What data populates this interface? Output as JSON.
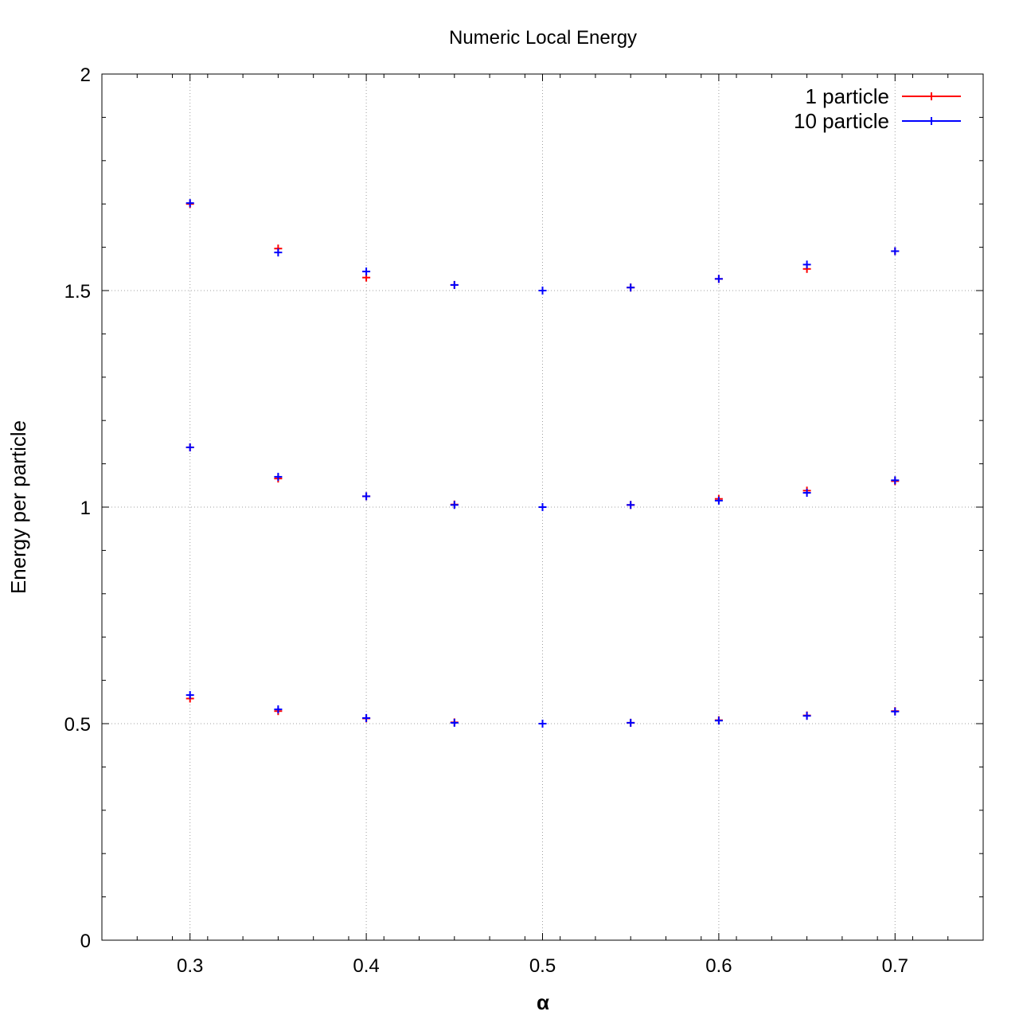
{
  "chart_data": {
    "type": "scatter",
    "title": "Numeric Local Energy",
    "xlabel": "α",
    "ylabel": "Energy per particle",
    "xlim": [
      0.25,
      0.75
    ],
    "ylim": [
      0,
      2
    ],
    "x_ticks": [
      0.3,
      0.4,
      0.5,
      0.6,
      0.7
    ],
    "x_tick_labels": [
      "0.3",
      "0.4",
      "0.5",
      "0.6",
      "0.7"
    ],
    "y_ticks": [
      0,
      0.5,
      1,
      1.5,
      2
    ],
    "y_tick_labels": [
      "0",
      "0.5",
      "1",
      "1.5",
      "2"
    ],
    "grid": true,
    "legend_position": "top-right",
    "series": [
      {
        "name": "1 particle",
        "color": "#ff0000",
        "x": [
          0.3,
          0.35,
          0.4,
          0.45,
          0.5,
          0.55,
          0.6,
          0.65,
          0.7,
          0.3,
          0.35,
          0.4,
          0.45,
          0.5,
          0.55,
          0.6,
          0.65,
          0.7,
          0.3,
          0.35,
          0.4,
          0.45,
          0.5,
          0.55,
          0.6,
          0.65,
          0.7
        ],
        "y": [
          0.558,
          0.529,
          0.512,
          0.503,
          0.5,
          0.502,
          0.508,
          0.519,
          0.529,
          1.138,
          1.066,
          1.025,
          1.006,
          1.0,
          1.005,
          1.019,
          1.038,
          1.06,
          1.7,
          1.597,
          1.53,
          1.513,
          1.5,
          1.507,
          1.527,
          1.55,
          1.591
        ]
      },
      {
        "name": "10 particle",
        "color": "#0000ff",
        "x": [
          0.3,
          0.35,
          0.4,
          0.45,
          0.5,
          0.55,
          0.6,
          0.65,
          0.7,
          0.3,
          0.35,
          0.4,
          0.45,
          0.5,
          0.55,
          0.6,
          0.65,
          0.7,
          0.3,
          0.35,
          0.4,
          0.45,
          0.5,
          0.55,
          0.6,
          0.65,
          0.7
        ],
        "y": [
          0.566,
          0.533,
          0.513,
          0.502,
          0.5,
          0.502,
          0.507,
          0.518,
          0.528,
          1.138,
          1.07,
          1.025,
          1.005,
          1.0,
          1.005,
          1.015,
          1.033,
          1.062,
          1.702,
          1.588,
          1.544,
          1.513,
          1.5,
          1.507,
          1.527,
          1.56,
          1.591
        ]
      }
    ]
  }
}
